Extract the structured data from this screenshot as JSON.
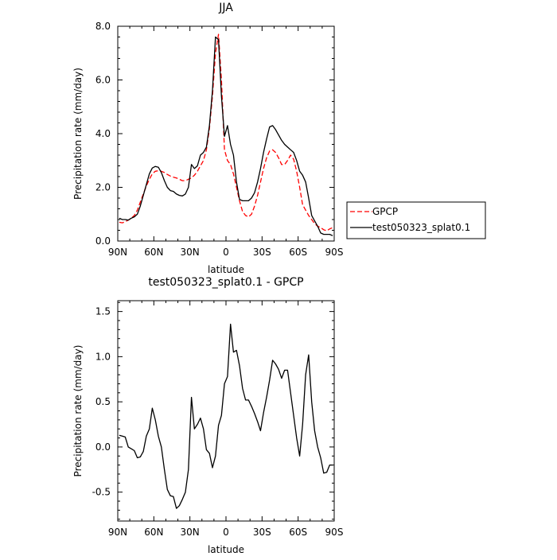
{
  "chart_data": [
    {
      "type": "line",
      "title": "JJA",
      "xlabel": "latitude",
      "ylabel": "Precipitation rate (mm/day)",
      "xlim": [
        90,
        -90
      ],
      "ylim": [
        0,
        8
      ],
      "x_ticks": [
        90,
        60,
        30,
        0,
        -30,
        -60,
        -90
      ],
      "x_tick_labels": [
        "90N",
        "60N",
        "30N",
        "0",
        "30S",
        "60S",
        "90S"
      ],
      "y_ticks": [
        0,
        2,
        4,
        6,
        8
      ],
      "y_tick_labels": [
        "0.0",
        "2.0",
        "4.0",
        "6.0",
        "8.0"
      ],
      "legend_position": "right",
      "series": [
        {
          "name": "GPCP",
          "color": "#ff0000",
          "dash": true,
          "x": [
            88.75,
            86.25,
            83.75,
            81.25,
            78.75,
            76.25,
            73.75,
            71.25,
            68.75,
            66.25,
            63.75,
            61.25,
            58.75,
            56.25,
            53.75,
            51.25,
            48.75,
            46.25,
            43.75,
            41.25,
            38.75,
            36.25,
            33.75,
            31.25,
            28.75,
            26.25,
            23.75,
            21.25,
            18.75,
            16.25,
            13.75,
            11.25,
            8.75,
            6.25,
            3.75,
            1.25,
            -1.25,
            -3.75,
            -6.25,
            -8.75,
            -11.25,
            -13.75,
            -16.25,
            -18.75,
            -21.25,
            -23.75,
            -26.25,
            -28.75,
            -31.25,
            -33.75,
            -36.25,
            -38.75,
            -41.25,
            -43.75,
            -46.25,
            -48.75,
            -51.25,
            -53.75,
            -56.25,
            -58.75,
            -61.25,
            -63.75,
            -66.25,
            -68.75,
            -71.25,
            -73.75,
            -76.25,
            -78.75,
            -81.25,
            -83.75,
            -86.25,
            -88.75
          ],
          "y": [
            0.7,
            0.68,
            0.72,
            0.78,
            0.85,
            0.95,
            1.15,
            1.45,
            1.75,
            2.05,
            2.3,
            2.5,
            2.6,
            2.62,
            2.6,
            2.55,
            2.48,
            2.42,
            2.38,
            2.35,
            2.3,
            2.25,
            2.25,
            2.3,
            2.35,
            2.45,
            2.6,
            2.8,
            3.0,
            3.4,
            4.2,
            5.4,
            7.0,
            7.7,
            6.0,
            3.4,
            3.0,
            2.85,
            2.5,
            2.0,
            1.5,
            1.1,
            0.95,
            0.9,
            1.0,
            1.3,
            1.7,
            2.2,
            2.7,
            3.1,
            3.35,
            3.4,
            3.3,
            3.1,
            2.85,
            2.85,
            3.0,
            3.2,
            3.05,
            2.6,
            2.0,
            1.35,
            1.15,
            0.95,
            0.8,
            0.65,
            0.55,
            0.5,
            0.42,
            0.38,
            0.45,
            0.5
          ]
        },
        {
          "name": "test050323_splat0.1",
          "color": "#000000",
          "dash": false,
          "x": [
            88.75,
            86.25,
            83.75,
            81.25,
            78.75,
            76.25,
            73.75,
            71.25,
            68.75,
            66.25,
            63.75,
            61.25,
            58.75,
            56.25,
            53.75,
            51.25,
            48.75,
            46.25,
            43.75,
            41.25,
            38.75,
            36.25,
            33.75,
            31.25,
            28.75,
            26.25,
            23.75,
            21.25,
            18.75,
            16.25,
            13.75,
            11.25,
            8.75,
            6.25,
            3.75,
            1.25,
            -1.25,
            -3.75,
            -6.25,
            -8.75,
            -11.25,
            -13.75,
            -16.25,
            -18.75,
            -21.25,
            -23.75,
            -26.25,
            -28.75,
            -31.25,
            -33.75,
            -36.25,
            -38.75,
            -41.25,
            -43.75,
            -46.25,
            -48.75,
            -51.25,
            -53.75,
            -56.25,
            -58.75,
            -61.25,
            -63.75,
            -66.25,
            -68.75,
            -71.25,
            -73.75,
            -76.25,
            -78.75,
            -81.25,
            -83.75,
            -86.25,
            -88.75
          ],
          "y": [
            0.85,
            0.8,
            0.8,
            0.78,
            0.85,
            0.9,
            1.0,
            1.3,
            1.7,
            2.1,
            2.5,
            2.72,
            2.78,
            2.75,
            2.55,
            2.25,
            2.0,
            1.88,
            1.85,
            1.75,
            1.7,
            1.68,
            1.75,
            2.0,
            2.85,
            2.7,
            2.8,
            3.2,
            3.3,
            3.5,
            4.3,
            5.6,
            7.6,
            7.5,
            5.4,
            3.9,
            4.3,
            3.6,
            3.2,
            2.2,
            1.55,
            1.5,
            1.5,
            1.5,
            1.6,
            1.8,
            2.2,
            2.7,
            3.3,
            3.8,
            4.25,
            4.3,
            4.15,
            3.95,
            3.75,
            3.6,
            3.5,
            3.4,
            3.3,
            3.0,
            2.6,
            2.45,
            2.2,
            1.6,
            0.95,
            0.75,
            0.55,
            0.3,
            0.25,
            0.25,
            0.25,
            0.2
          ]
        }
      ]
    },
    {
      "type": "line",
      "title": "test050323_splat0.1 - GPCP",
      "xlabel": "latitude",
      "ylabel": "Precipitation rate (mm/day)",
      "xlim": [
        90,
        -90
      ],
      "ylim": [
        -0.82,
        1.62
      ],
      "x_ticks": [
        90,
        60,
        30,
        0,
        -30,
        -60,
        -90
      ],
      "x_tick_labels": [
        "90N",
        "60N",
        "30N",
        "0",
        "30S",
        "60S",
        "90S"
      ],
      "y_ticks": [
        -0.5,
        0,
        0.5,
        1.0,
        1.5
      ],
      "y_tick_labels": [
        "-0.5",
        "0.0",
        "0.5",
        "1.0",
        "1.5"
      ],
      "series": [
        {
          "name": "",
          "color": "#000000",
          "dash": false,
          "x": [
            88.75,
            86.25,
            83.75,
            81.25,
            78.75,
            76.25,
            73.75,
            71.25,
            68.75,
            66.25,
            63.75,
            61.25,
            58.75,
            56.25,
            53.75,
            51.25,
            48.75,
            46.25,
            43.75,
            41.25,
            38.75,
            36.25,
            33.75,
            31.25,
            28.75,
            26.25,
            23.75,
            21.25,
            18.75,
            16.25,
            13.75,
            11.25,
            8.75,
            6.25,
            3.75,
            1.25,
            -1.25,
            -3.75,
            -6.25,
            -8.75,
            -11.25,
            -13.75,
            -16.25,
            -18.75,
            -21.25,
            -23.75,
            -26.25,
            -28.75,
            -31.25,
            -33.75,
            -36.25,
            -38.75,
            -41.25,
            -43.75,
            -46.25,
            -48.75,
            -51.25,
            -53.75,
            -56.25,
            -58.75,
            -61.25,
            -63.75,
            -66.25,
            -68.75,
            -71.25,
            -73.75,
            -76.25,
            -78.75,
            -81.25,
            -83.75,
            -86.25,
            -88.75
          ],
          "y": [
            0.13,
            0.12,
            0.11,
            0.0,
            -0.02,
            -0.04,
            -0.12,
            -0.11,
            -0.05,
            0.12,
            0.2,
            0.43,
            0.3,
            0.12,
            0.0,
            -0.25,
            -0.47,
            -0.54,
            -0.55,
            -0.68,
            -0.65,
            -0.58,
            -0.5,
            -0.25,
            0.55,
            0.2,
            0.25,
            0.32,
            0.2,
            -0.03,
            -0.07,
            -0.23,
            -0.1,
            0.24,
            0.35,
            0.7,
            0.78,
            1.36,
            1.05,
            1.07,
            0.9,
            0.65,
            0.52,
            0.52,
            0.45,
            0.37,
            0.28,
            0.18,
            0.38,
            0.55,
            0.74,
            0.96,
            0.92,
            0.86,
            0.76,
            0.85,
            0.85,
            0.6,
            0.35,
            0.1,
            -0.1,
            0.25,
            0.8,
            1.02,
            0.5,
            0.18,
            0.0,
            -0.12,
            -0.29,
            -0.28,
            -0.2,
            -0.2
          ]
        }
      ]
    }
  ]
}
